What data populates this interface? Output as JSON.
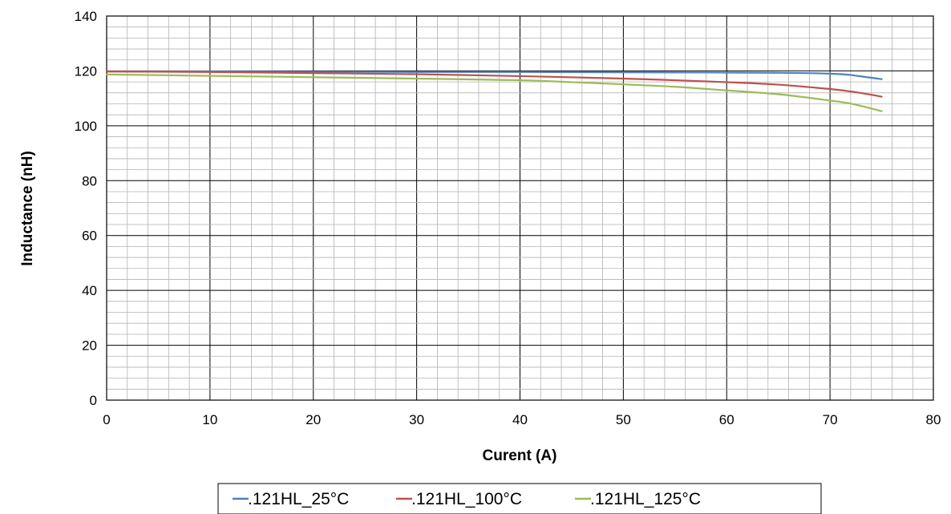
{
  "chart_data": {
    "type": "line",
    "title": "",
    "xlabel": "Curent (A)",
    "ylabel": "Inductance (nH)",
    "xlim": [
      0,
      80
    ],
    "ylim": [
      0,
      140
    ],
    "xticks": [
      "0",
      "10",
      "20",
      "30",
      "40",
      "50",
      "60",
      "70",
      "80"
    ],
    "yticks": [
      "0",
      "20",
      "40",
      "60",
      "80",
      "100",
      "120",
      "140"
    ],
    "grid": true,
    "legend": "bottom",
    "series": [
      {
        "name": ".121HL_25°C",
        "color": "#4f81bd",
        "x": [
          0,
          10,
          20,
          30,
          40,
          50,
          60,
          65,
          68,
          70,
          71,
          72,
          73,
          74,
          75
        ],
        "y": [
          119.8,
          119.8,
          119.7,
          119.6,
          119.6,
          119.5,
          119.4,
          119.3,
          119.2,
          119.0,
          118.8,
          118.5,
          118.0,
          117.5,
          117.0
        ]
      },
      {
        "name": ".121HL_100°C",
        "color": "#c0504d",
        "x": [
          0,
          10,
          20,
          30,
          40,
          50,
          55,
          60,
          65,
          70,
          72,
          74,
          75
        ],
        "y": [
          119.8,
          119.6,
          119.2,
          118.8,
          118.1,
          117.2,
          116.6,
          115.9,
          115.0,
          113.4,
          112.5,
          111.3,
          110.6
        ]
      },
      {
        "name": ".121HL_125°C",
        "color": "#9bbb59",
        "x": [
          0,
          10,
          20,
          30,
          40,
          45,
          50,
          55,
          60,
          65,
          70,
          72,
          74,
          75
        ],
        "y": [
          118.7,
          118.2,
          117.7,
          117.2,
          116.6,
          115.9,
          115.1,
          114.2,
          112.9,
          111.5,
          109.2,
          108.1,
          106.3,
          105.3
        ]
      }
    ]
  }
}
